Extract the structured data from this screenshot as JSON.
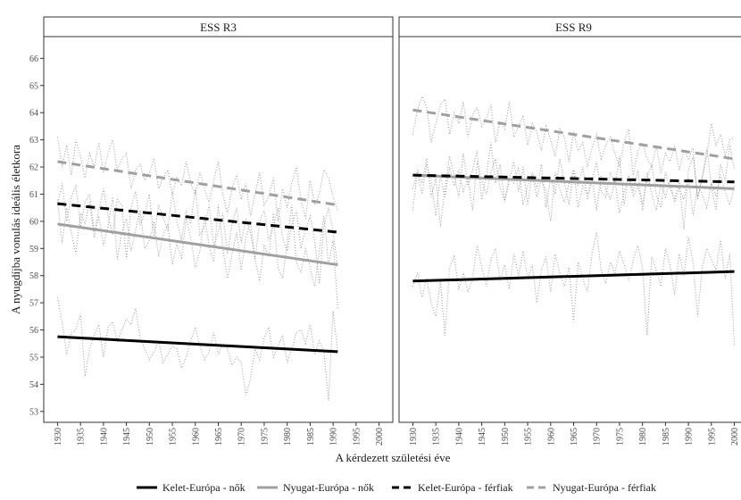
{
  "chart_data": {
    "type": "line",
    "xlabel": "A kérdezett születési éve",
    "ylabel": "A nyugdíjba vonulás ideális életkora",
    "ylim": [
      52.6,
      66.8
    ],
    "yticks": [
      53,
      54,
      55,
      56,
      57,
      58,
      59,
      60,
      61,
      62,
      63,
      64,
      65,
      66
    ],
    "xlim": [
      1927,
      2003
    ],
    "xticks": [
      1930,
      1935,
      1940,
      1945,
      1950,
      1955,
      1960,
      1965,
      1970,
      1975,
      1980,
      1985,
      1990,
      1995,
      2000
    ],
    "grid": false,
    "legend_position": "bottom",
    "series_styles": [
      {
        "color": "#000000",
        "dash": "solid"
      },
      {
        "color": "#a0a0a0",
        "dash": "solid"
      },
      {
        "color": "#000000",
        "dash": "dashed"
      },
      {
        "color": "#a0a0a0",
        "dash": "dashed"
      }
    ],
    "legend": [
      "Kelet-Európa - nők",
      "Nyugat-Európa - nők",
      "Kelet-Európa - férfiak",
      "Nyugat-Európa - férfiak"
    ],
    "panels": [
      {
        "title": "ESS R3",
        "fits": [
          {
            "series": "Kelet-Európa - nők",
            "x": [
              1930,
              1991
            ],
            "y": [
              55.75,
              55.2
            ]
          },
          {
            "series": "Nyugat-Európa - nők",
            "x": [
              1930,
              1991
            ],
            "y": [
              59.9,
              58.4
            ]
          },
          {
            "series": "Kelet-Európa - férfiak",
            "x": [
              1930,
              1991
            ],
            "y": [
              60.65,
              59.6
            ]
          },
          {
            "series": "Nyugat-Európa - férfiak",
            "x": [
              1930,
              1991
            ],
            "y": [
              62.2,
              60.6
            ]
          }
        ],
        "raw": {
          "x_start": 1930,
          "series": [
            {
              "series": "Kelet-Európa - nők",
              "values": [
                57.2,
                56.3,
                55.1,
                55.9,
                56.0,
                56.6,
                54.3,
                55.3,
                55.8,
                56.2,
                55.0,
                56.1,
                56.3,
                55.6,
                56.0,
                56.4,
                56.2,
                56.8,
                55.7,
                55.3,
                54.9,
                55.2,
                55.6,
                54.8,
                55.1,
                55.4,
                55.3,
                54.6,
                55.0,
                55.6,
                56.1,
                55.4,
                54.9,
                55.2,
                55.9,
                55.1,
                55.5,
                55.3,
                54.7,
                55.0,
                54.8,
                53.6,
                54.2,
                55.3,
                54.9,
                55.7,
                56.1,
                55.0,
                55.4,
                55.8,
                54.8,
                55.3,
                55.9,
                56.0,
                55.5,
                56.2,
                55.1,
                55.6,
                55.2,
                53.4,
                56.7,
                55.2
              ]
            },
            {
              "series": "Nyugat-Európa - nők",
              "values": [
                60.8,
                59.2,
                60.5,
                59.6,
                58.8,
                60.3,
                59.9,
                60.7,
                59.4,
                60.2,
                59.1,
                59.8,
                60.9,
                58.6,
                59.6,
                60.1,
                58.9,
                59.7,
                60.4,
                59.0,
                59.3,
                60.0,
                58.7,
                59.5,
                59.9,
                58.4,
                59.2,
                58.6,
                60.1,
                59.4,
                58.3,
                58.9,
                60.2,
                59.1,
                58.5,
                60.6,
                59.0,
                57.9,
                58.8,
                59.6,
                58.2,
                59.4,
                60.0,
                58.6,
                57.8,
                59.1,
                58.7,
                60.3,
                58.3,
                57.9,
                59.2,
                60.6,
                58.5,
                58.1,
                59.0,
                58.3,
                57.6,
                58.9,
                60.2,
                58.4,
                59.3,
                56.8
              ]
            },
            {
              "series": "Kelet-Európa - férfiak",
              "values": [
                60.6,
                61.4,
                60.0,
                60.9,
                61.3,
                59.8,
                60.7,
                61.0,
                59.6,
                60.4,
                61.2,
                60.2,
                59.5,
                60.8,
                60.6,
                58.6,
                60.5,
                61.1,
                59.9,
                60.3,
                61.0,
                59.4,
                60.6,
                60.1,
                59.7,
                61.1,
                60.0,
                59.3,
                60.4,
                59.9,
                61.2,
                59.5,
                59.8,
                60.6,
                59.1,
                59.6,
                60.3,
                58.8,
                59.9,
                60.5,
                59.2,
                60.1,
                59.6,
                58.6,
                60.0,
                60.4,
                59.3,
                59.8,
                60.5,
                59.4,
                58.9,
                59.9,
                60.4,
                59.0,
                59.7,
                60.2,
                59.3,
                57.7,
                59.8,
                60.5,
                59.6,
                58.3
              ]
            },
            {
              "series": "Nyugat-Európa - férfiak",
              "values": [
                63.1,
                62.0,
                62.8,
                61.7,
                63.0,
                62.4,
                61.6,
                62.5,
                62.0,
                62.9,
                61.8,
                62.5,
                63.0,
                61.9,
                62.3,
                62.5,
                61.2,
                61.9,
                62.1,
                61.5,
                61.8,
                62.3,
                61.2,
                61.6,
                61.9,
                61.0,
                61.6,
                61.3,
                62.2,
                61.4,
                61.0,
                61.8,
                61.2,
                60.7,
                61.5,
                62.2,
                61.0,
                60.3,
                61.2,
                61.7,
                60.8,
                61.4,
                60.2,
                61.0,
                61.8,
                60.6,
                60.9,
                61.6,
                60.0,
                61.2,
                60.5,
                61.4,
                62.0,
                60.8,
                60.1,
                61.5,
                60.6,
                61.0,
                61.9,
                61.6,
                60.9,
                60.4
              ]
            }
          ]
        }
      },
      {
        "title": "ESS R9",
        "fits": [
          {
            "series": "Kelet-Európa - nők",
            "x": [
              1930,
              2000
            ],
            "y": [
              57.8,
              58.15
            ]
          },
          {
            "series": "Nyugat-Európa - nők",
            "x": [
              1930,
              2000
            ],
            "y": [
              61.7,
              61.2
            ]
          },
          {
            "series": "Kelet-Európa - férfiak",
            "x": [
              1930,
              2000
            ],
            "y": [
              61.7,
              61.45
            ]
          },
          {
            "series": "Nyugat-Európa - férfiak",
            "x": [
              1930,
              2000
            ],
            "y": [
              64.1,
              62.3
            ]
          }
        ],
        "raw": {
          "x_start": 1930,
          "series": [
            {
              "series": "Kelet-Európa - nők",
              "values": [
                57.6,
                58.1,
                57.2,
                57.9,
                57.0,
                56.5,
                57.8,
                55.8,
                58.3,
                58.7,
                57.5,
                58.1,
                57.4,
                57.9,
                59.1,
                58.3,
                57.6,
                58.6,
                59.0,
                57.8,
                58.4,
                57.5,
                58.8,
                58.0,
                58.9,
                57.9,
                58.4,
                57.0,
                58.2,
                58.7,
                57.4,
                58.8,
                58.1,
                57.6,
                58.3,
                56.3,
                58.5,
                57.9,
                57.4,
                58.8,
                59.6,
                58.2,
                57.7,
                58.5,
                58.1,
                58.9,
                58.4,
                57.8,
                58.6,
                59.1,
                58.3,
                55.8,
                58.7,
                58.2,
                57.6,
                59.0,
                58.4,
                57.3,
                58.8,
                58.0,
                59.4,
                58.5,
                56.5,
                58.3,
                59.0,
                58.6,
                58.2,
                59.3,
                57.9,
                58.8,
                55.4
              ]
            },
            {
              "series": "Nyugat-Európa - nők",
              "values": [
                61.2,
                61.8,
                61.0,
                62.1,
                61.5,
                60.2,
                61.7,
                60.9,
                62.0,
                61.3,
                61.9,
                61.1,
                61.6,
                60.4,
                62.2,
                61.5,
                61.0,
                61.8,
                62.3,
                61.2,
                60.8,
                61.6,
                61.4,
                62.0,
                60.6,
                61.3,
                61.7,
                60.9,
                61.5,
                61.1,
                60.0,
                61.8,
                61.2,
                60.7,
                61.4,
                61.9,
                60.5,
                61.3,
                61.0,
                61.6,
                60.4,
                61.7,
                61.2,
                60.8,
                61.5,
                60.3,
                61.1,
                61.6,
                60.9,
                61.3,
                60.6,
                61.8,
                61.0,
                60.4,
                61.4,
                60.9,
                61.5,
                60.7,
                61.2,
                60.8,
                61.6,
                60.2,
                61.3,
                61.0,
                60.5,
                61.4,
                60.9,
                61.7,
                61.1,
                60.6,
                61.3
              ]
            },
            {
              "series": "Kelet-Európa - férfiak",
              "values": [
                60.4,
                61.9,
                61.4,
                62.3,
                60.9,
                61.6,
                59.8,
                61.2,
                62.4,
                61.7,
                60.9,
                62.5,
                61.3,
                61.9,
                62.6,
                60.8,
                61.7,
                62.9,
                61.4,
                62.1,
                60.7,
                61.5,
                62.2,
                61.1,
                62.0,
                60.6,
                61.8,
                61.2,
                62.1,
                60.5,
                61.6,
                61.0,
                62.3,
                61.4,
                60.6,
                61.9,
                61.3,
                62.0,
                60.8,
                61.5,
                62.2,
                61.1,
                60.9,
                61.8,
                61.3,
                62.4,
                60.6,
                61.7,
                61.1,
                61.9,
                60.4,
                61.6,
                62.1,
                61.0,
                60.5,
                61.8,
                61.2,
                60.8,
                61.5,
                59.7,
                61.9,
                62.4,
                60.9,
                61.6,
                62.7,
                61.3,
                60.4,
                62.1,
                61.5,
                62.8,
                61.9
              ]
            },
            {
              "series": "Nyugat-Európa - férfiak",
              "values": [
                63.2,
                64.1,
                64.6,
                64.2,
                62.9,
                63.6,
                64.3,
                64.5,
                63.2,
                64.0,
                63.6,
                64.4,
                63.1,
                63.9,
                64.2,
                63.5,
                63.8,
                64.3,
                62.9,
                63.7,
                63.4,
                64.4,
                63.1,
                63.5,
                63.9,
                62.8,
                63.6,
                63.3,
                62.6,
                63.5,
                63.0,
                62.4,
                63.4,
                63.1,
                62.2,
                63.3,
                62.6,
                62.9,
                62.0,
                62.7,
                63.2,
                62.3,
                62.8,
                63.1,
                62.5,
                62.0,
                62.9,
                63.4,
                61.7,
                62.6,
                62.9,
                62.3,
                62.0,
                62.8,
                61.8,
                62.5,
                62.2,
                62.8,
                61.9,
                62.6,
                62.3,
                62.7,
                60.8,
                61.6,
                62.4,
                63.6,
                62.8,
                63.2,
                62.4,
                63.0,
                63.1
              ]
            }
          ]
        }
      }
    ]
  }
}
